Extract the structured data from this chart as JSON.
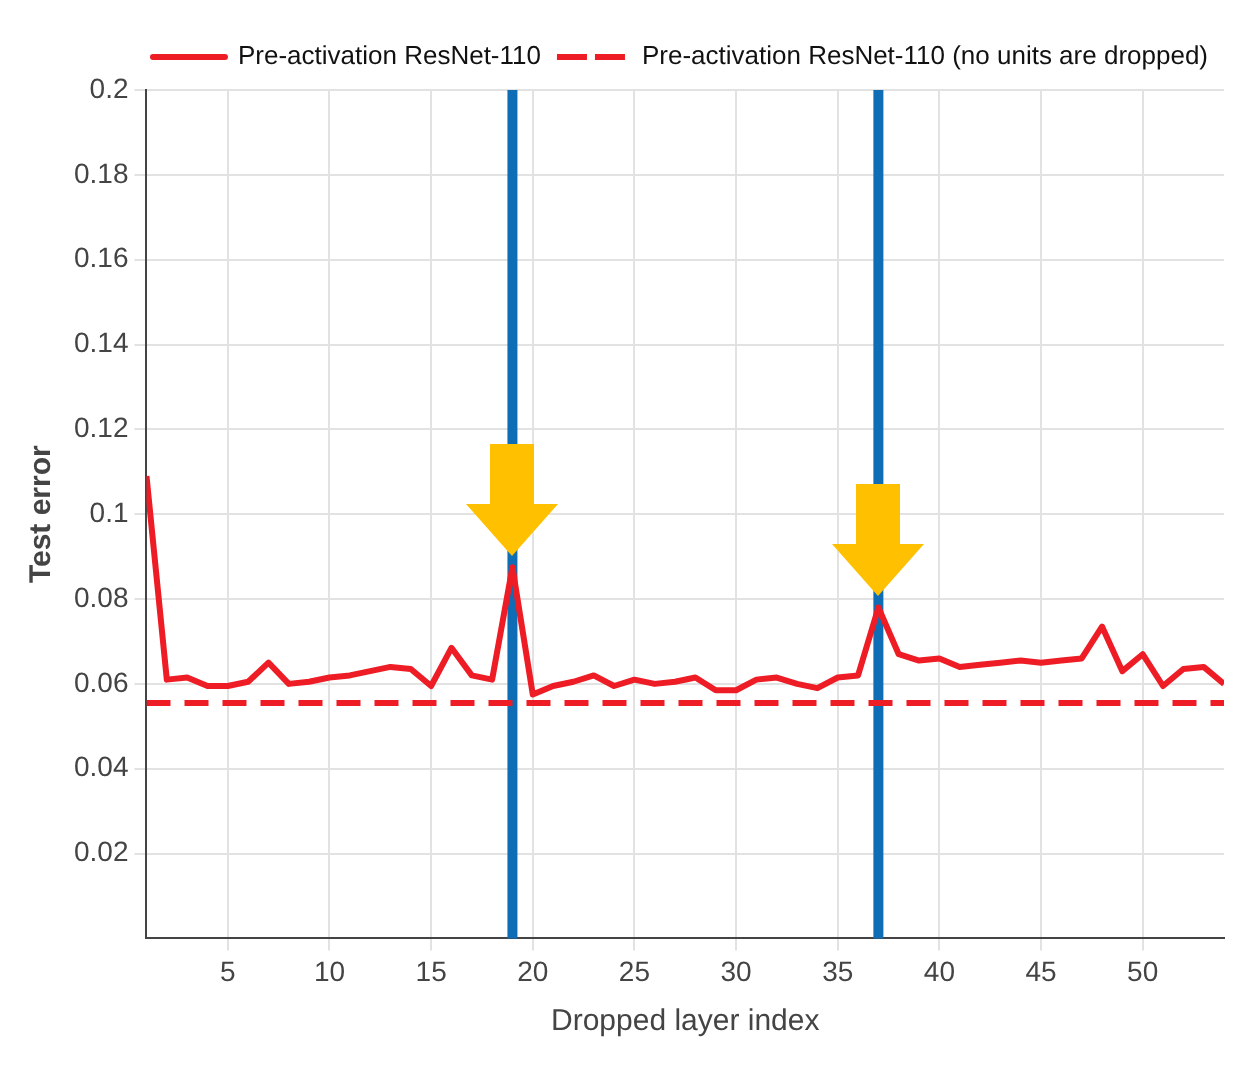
{
  "chart_data": {
    "type": "line",
    "xlabel": "Dropped layer index",
    "ylabel": "Test error",
    "xlim": [
      1,
      54
    ],
    "xticks": [
      5,
      10,
      15,
      20,
      25,
      30,
      35,
      40,
      45,
      50
    ],
    "ylim": [
      0,
      0.2
    ],
    "yticks": [
      0.02,
      0.04,
      0.06,
      0.08,
      0.1,
      0.12,
      0.14,
      0.16,
      0.18,
      0.2
    ],
    "grid": true,
    "legend": "top right",
    "series": [
      {
        "name": "Pre-activation ResNet-110",
        "color": "#ee1c25",
        "line_style": "solid",
        "x": [
          1,
          2,
          3,
          4,
          5,
          6,
          7,
          8,
          9,
          10,
          11,
          12,
          13,
          14,
          15,
          16,
          17,
          18,
          19,
          20,
          21,
          22,
          23,
          24,
          25,
          26,
          27,
          28,
          29,
          30,
          31,
          32,
          33,
          34,
          35,
          36,
          37,
          38,
          39,
          40,
          41,
          42,
          43,
          44,
          45,
          46,
          47,
          48,
          49,
          50,
          51,
          52,
          53,
          54
        ],
        "values": [
          0.109,
          0.061,
          0.0615,
          0.0595,
          0.0595,
          0.0605,
          0.065,
          0.06,
          0.0605,
          0.0615,
          0.062,
          0.063,
          0.064,
          0.0635,
          0.0595,
          0.0685,
          0.062,
          0.061,
          0.0875,
          0.0575,
          0.0595,
          0.0605,
          0.062,
          0.0595,
          0.061,
          0.06,
          0.0605,
          0.0615,
          0.0585,
          0.0585,
          0.061,
          0.0615,
          0.06,
          0.059,
          0.0615,
          0.062,
          0.078,
          0.067,
          0.0655,
          0.066,
          0.064,
          0.0645,
          0.065,
          0.0655,
          0.065,
          0.0655,
          0.066,
          0.0735,
          0.063,
          0.067,
          0.0595,
          0.0635,
          0.064,
          0.06
        ]
      },
      {
        "name": "Pre-activation ResNet-110 (no units are dropped)",
        "color": "#ee1c25",
        "line_style": "dashed",
        "x": [
          1,
          54
        ],
        "values": [
          0.0555,
          0.0555
        ]
      }
    ],
    "ref_lines": [
      {
        "axis": "x",
        "value": 19,
        "color": "#0e6db5"
      },
      {
        "axis": "x",
        "value": 37,
        "color": "#0e6db5"
      }
    ]
  }
}
